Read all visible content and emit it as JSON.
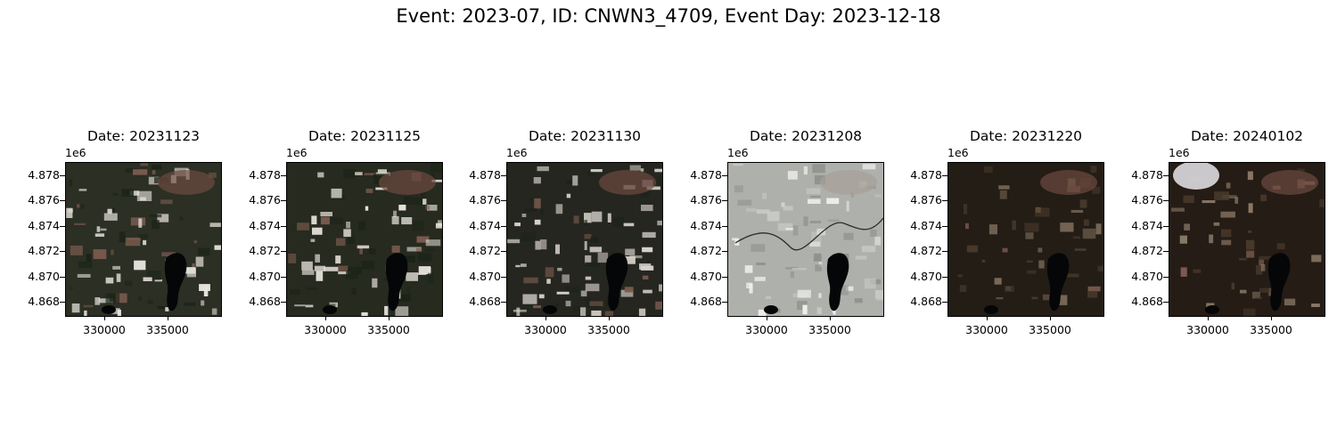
{
  "figure": {
    "title": "Event: 2023-07, ID: CNWN3_4709, Event Day: 2023-12-18"
  },
  "axes": {
    "y_offset_label": "1e6",
    "y_ticks": [
      "4.878",
      "4.876",
      "4.874",
      "4.872",
      "4.870",
      "4.868"
    ],
    "x_ticks": [
      "330000",
      "335000"
    ]
  },
  "panels": [
    {
      "title": "Date: 20231123",
      "tone": "snowy",
      "base": "#2b2f24",
      "snow": "#e6e2dc"
    },
    {
      "title": "Date: 20231125",
      "tone": "snowy",
      "base": "#262a1f",
      "snow": "#e9e4de"
    },
    {
      "title": "Date: 20231130",
      "tone": "partial",
      "base": "#25261f",
      "snow": "#d8d2cc"
    },
    {
      "title": "Date: 20231208",
      "tone": "bright",
      "base": "#aeb0ac",
      "snow": "#e2e2e0"
    },
    {
      "title": "Date: 20231220",
      "tone": "dark",
      "base": "#231d16",
      "snow": "#7a6a58"
    },
    {
      "title": "Date: 20240102",
      "tone": "dark-cloud",
      "base": "#241c15",
      "snow": "#8a7866"
    }
  ]
}
